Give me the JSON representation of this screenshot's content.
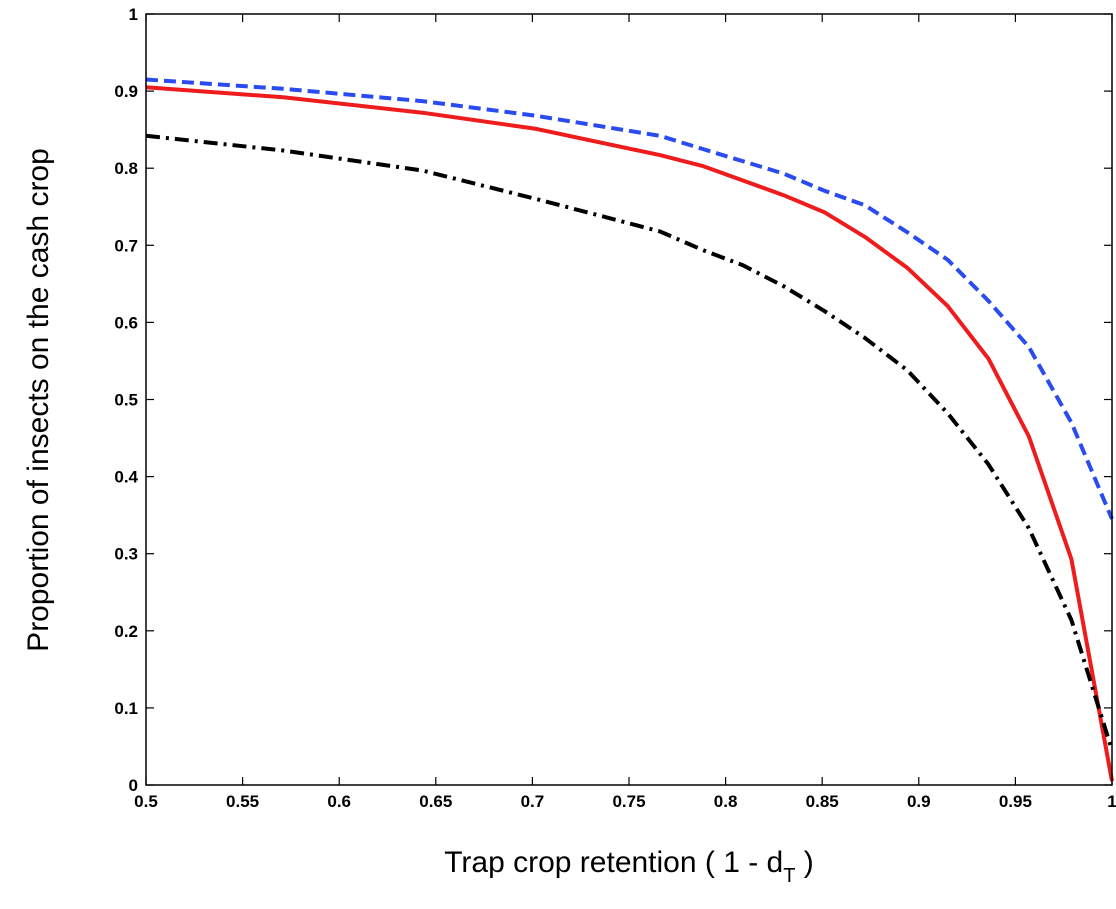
{
  "chart_data": {
    "type": "line",
    "title": "",
    "xlabel": "Trap crop retention ( 1 - d",
    "xlabel_subscript": "T",
    "xlabel_suffix": " )",
    "ylabel": "Proportion of insects on the cash crop",
    "xlim": [
      0.5,
      1
    ],
    "ylim": [
      0,
      1
    ],
    "grid": false,
    "x_ticks": [
      0.5,
      0.55,
      0.6,
      0.65,
      0.7,
      0.75,
      0.8,
      0.85,
      0.9,
      0.95,
      1
    ],
    "x_tick_labels": [
      "0.5",
      "0.55",
      "0.6",
      "0.65",
      "0.7",
      "0.75",
      "0.8",
      "0.85",
      "0.9",
      "0.95",
      "1"
    ],
    "y_ticks": [
      0,
      0.1,
      0.2,
      0.3,
      0.4,
      0.5,
      0.6,
      0.7,
      0.8,
      0.9,
      1
    ],
    "y_tick_labels": [
      "0",
      "0.1",
      "0.2",
      "0.3",
      "0.4",
      "0.5",
      "0.6",
      "0.7",
      "0.8",
      "0.9",
      "1"
    ],
    "series": [
      {
        "color": "#2a4bf0",
        "style": "dashed",
        "x": [
          0.5,
          0.571,
          0.643,
          0.702,
          0.766,
          0.788,
          0.83,
          0.851,
          0.872,
          0.894,
          0.915,
          0.936,
          0.957,
          0.979,
          1.0
        ],
        "y": [
          0.915,
          0.903,
          0.887,
          0.868,
          0.842,
          0.825,
          0.793,
          0.771,
          0.752,
          0.717,
          0.681,
          0.628,
          0.568,
          0.47,
          0.345
        ]
      },
      {
        "color": "#ee1c1c",
        "style": "solid",
        "x": [
          0.5,
          0.571,
          0.643,
          0.702,
          0.766,
          0.788,
          0.83,
          0.851,
          0.872,
          0.894,
          0.915,
          0.936,
          0.957,
          0.979,
          1.0
        ],
        "y": [
          0.905,
          0.892,
          0.872,
          0.851,
          0.817,
          0.803,
          0.765,
          0.743,
          0.711,
          0.671,
          0.621,
          0.553,
          0.452,
          0.293,
          0.005
        ]
      },
      {
        "color": "#000000",
        "style": "dashdot",
        "x": [
          0.5,
          0.571,
          0.643,
          0.702,
          0.766,
          0.788,
          0.809,
          0.83,
          0.851,
          0.872,
          0.894,
          0.915,
          0.936,
          0.957,
          0.979,
          1.0
        ],
        "y": [
          0.842,
          0.823,
          0.797,
          0.76,
          0.718,
          0.694,
          0.674,
          0.647,
          0.615,
          0.58,
          0.538,
          0.482,
          0.416,
          0.333,
          0.214,
          0.045
        ]
      }
    ]
  }
}
